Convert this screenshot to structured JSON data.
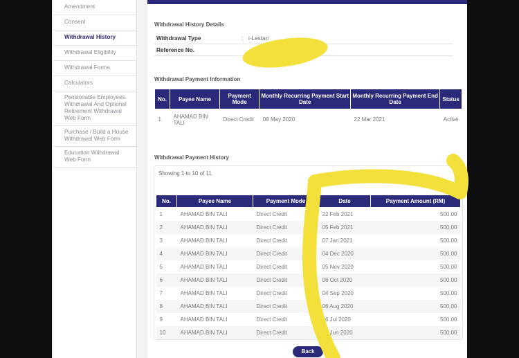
{
  "sidebar": {
    "items": [
      {
        "label": "Amendment"
      },
      {
        "label": "Consent"
      },
      {
        "label": "Withdrawal History",
        "active": true
      },
      {
        "label": "Withdrawal Eligibility"
      },
      {
        "label": "Withdrawal Forms"
      },
      {
        "label": "Calculators"
      },
      {
        "label": "Pensionable Employees Withdrawal And Optional Retirement Withdrawal Web Form"
      },
      {
        "label": "Purchase / Build a House Withdrawal Web Form"
      },
      {
        "label": "Education Withdrawal Web Form"
      }
    ]
  },
  "details": {
    "title": "Withdrawal History Details",
    "type_label": "Withdrawal Type",
    "type_value": "i-Lestari",
    "ref_label": "Reference No.",
    "colon": ":"
  },
  "payment_info": {
    "title": "Withdrawal Payment Information",
    "headers": [
      "No.",
      "Payee Name",
      "Payment Mode",
      "Monthly Recurring Payment Start Date",
      "Monthly Recurring Payment End Date",
      "Status"
    ],
    "rows": [
      [
        "1",
        "AHAMAD BIN TALI",
        "Direct Credit",
        "08 May 2020",
        "22 Mar 2021",
        "Active"
      ]
    ]
  },
  "history": {
    "title": "Withdrawal Payment History",
    "showing": "Showing 1 to 10 of 11",
    "headers": [
      "No.",
      "Payee Name",
      "Payment Mode",
      "Date",
      "Payment Amount (RM)"
    ],
    "rows": [
      [
        "1",
        "AHAMAD BIN TALI",
        "Direct Credit",
        "22 Feb 2021",
        "500.00"
      ],
      [
        "2",
        "AHAMAD BIN TALI",
        "Direct Credit",
        "05 Feb 2021",
        "500.00"
      ],
      [
        "3",
        "AHAMAD BIN TALI",
        "Direct Credit",
        "07 Jan 2021",
        "500.00"
      ],
      [
        "4",
        "AHAMAD BIN TALI",
        "Direct Credit",
        "04 Dec 2020",
        "500.00"
      ],
      [
        "5",
        "AHAMAD BIN TALI",
        "Direct Credit",
        "05 Nov 2020",
        "500.00"
      ],
      [
        "6",
        "AHAMAD BIN TALI",
        "Direct Credit",
        "06 Oct 2020",
        "500.00"
      ],
      [
        "7",
        "AHAMAD BIN TALI",
        "Direct Credit",
        "04 Sep 2020",
        "500.00"
      ],
      [
        "8",
        "AHAMAD BIN TALI",
        "Direct Credit",
        "06 Aug 2020",
        "500.00"
      ],
      [
        "9",
        "AHAMAD BIN TALI",
        "Direct Credit",
        "06 Jul 2020",
        "500.00"
      ],
      [
        "10",
        "AHAMAD BIN TALI",
        "Direct Credit",
        "04 Jun 2020",
        "500.00"
      ]
    ]
  },
  "back_label": "Back",
  "colors": {
    "accent": "#2b2a7a",
    "highlighter": "#f3e03a"
  }
}
